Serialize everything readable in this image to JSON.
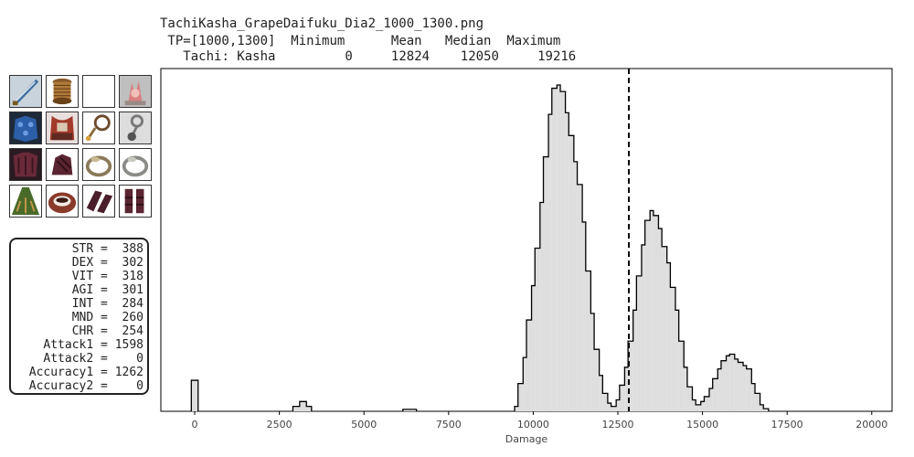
{
  "header": {
    "filename": "TachiKasha_GrapeDaifuku_Dia2_1000_1300.png",
    "tp_label": " TP=[1000,1300]",
    "col_minimum": "Minimum",
    "col_mean": "Mean",
    "col_median": "Median",
    "col_maximum": "Maximum",
    "row_label": "Tachi: Kasha",
    "minimum": "0",
    "mean": "12824",
    "median": "12050",
    "maximum": "19216"
  },
  "gear_icons": [
    "sword-icon",
    "grip-spool-icon",
    "empty-slot",
    "crystal-ammo-icon",
    "blue-helm-icon",
    "red-amulet-icon",
    "ring-earring-icon",
    "chain-earring-icon",
    "dark-body-icon",
    "dark-gloves-icon",
    "gold-ring-icon",
    "silver-ring-icon",
    "green-cape-icon",
    "belt-icon",
    "dark-legs-icon",
    "dark-boots-icon"
  ],
  "stats": [
    {
      "name": "STR",
      "value": "388"
    },
    {
      "name": "DEX",
      "value": "302"
    },
    {
      "name": "VIT",
      "value": "318"
    },
    {
      "name": "AGI",
      "value": "301"
    },
    {
      "name": "INT",
      "value": "284"
    },
    {
      "name": "MND",
      "value": "260"
    },
    {
      "name": "CHR",
      "value": "254"
    },
    {
      "name": "Attack1",
      "value": "1598"
    },
    {
      "name": "Attack2",
      "value": "0"
    },
    {
      "name": "Accuracy1",
      "value": "1262"
    },
    {
      "name": "Accuracy2",
      "value": "0"
    }
  ],
  "colors": {
    "fill": "#dedede",
    "stroke": "#000000",
    "mean_line": "#000000"
  },
  "chart_data": {
    "type": "histogram",
    "xlabel": "Damage",
    "ylabel": "",
    "xlim": [
      -1000,
      20600
    ],
    "xticks": [
      0,
      2500,
      5000,
      7500,
      10000,
      12500,
      15000,
      17500,
      20000
    ],
    "mean_line": 12824,
    "bins": [
      {
        "x0": -100,
        "x1": 100,
        "y": 0.095
      },
      {
        "x0": 2900,
        "x1": 3100,
        "y": 0.015
      },
      {
        "x0": 3100,
        "x1": 3300,
        "y": 0.03
      },
      {
        "x0": 3300,
        "x1": 3450,
        "y": 0.015
      },
      {
        "x0": 6150,
        "x1": 6350,
        "y": 0.006
      },
      {
        "x0": 6350,
        "x1": 6550,
        "y": 0.006
      },
      {
        "x0": 9450,
        "x1": 9550,
        "y": 0.015
      },
      {
        "x0": 9550,
        "x1": 9700,
        "y": 0.085
      },
      {
        "x0": 9700,
        "x1": 9800,
        "y": 0.165
      },
      {
        "x0": 9800,
        "x1": 9950,
        "y": 0.28
      },
      {
        "x0": 9950,
        "x1": 10050,
        "y": 0.385
      },
      {
        "x0": 10050,
        "x1": 10200,
        "y": 0.5
      },
      {
        "x0": 10200,
        "x1": 10300,
        "y": 0.64
      },
      {
        "x0": 10300,
        "x1": 10450,
        "y": 0.78
      },
      {
        "x0": 10450,
        "x1": 10550,
        "y": 0.91
      },
      {
        "x0": 10550,
        "x1": 10700,
        "y": 0.99
      },
      {
        "x0": 10700,
        "x1": 10800,
        "y": 1.0
      },
      {
        "x0": 10800,
        "x1": 10950,
        "y": 0.98
      },
      {
        "x0": 10950,
        "x1": 11050,
        "y": 0.915
      },
      {
        "x0": 11050,
        "x1": 11200,
        "y": 0.845
      },
      {
        "x0": 11200,
        "x1": 11300,
        "y": 0.765
      },
      {
        "x0": 11300,
        "x1": 11450,
        "y": 0.695
      },
      {
        "x0": 11450,
        "x1": 11550,
        "y": 0.58
      },
      {
        "x0": 11550,
        "x1": 11700,
        "y": 0.43
      },
      {
        "x0": 11700,
        "x1": 11800,
        "y": 0.3
      },
      {
        "x0": 11800,
        "x1": 11950,
        "y": 0.19
      },
      {
        "x0": 11950,
        "x1": 12050,
        "y": 0.11
      },
      {
        "x0": 12050,
        "x1": 12200,
        "y": 0.055
      },
      {
        "x0": 12200,
        "x1": 12300,
        "y": 0.025
      },
      {
        "x0": 12300,
        "x1": 12450,
        "y": 0.015
      },
      {
        "x0": 12450,
        "x1": 12550,
        "y": 0.035
      },
      {
        "x0": 12550,
        "x1": 12700,
        "y": 0.08
      },
      {
        "x0": 12700,
        "x1": 12800,
        "y": 0.135
      },
      {
        "x0": 12800,
        "x1": 12950,
        "y": 0.215
      },
      {
        "x0": 12950,
        "x1": 13050,
        "y": 0.31
      },
      {
        "x0": 13050,
        "x1": 13200,
        "y": 0.415
      },
      {
        "x0": 13200,
        "x1": 13300,
        "y": 0.51
      },
      {
        "x0": 13300,
        "x1": 13450,
        "y": 0.585
      },
      {
        "x0": 13450,
        "x1": 13550,
        "y": 0.615
      },
      {
        "x0": 13550,
        "x1": 13700,
        "y": 0.6
      },
      {
        "x0": 13700,
        "x1": 13800,
        "y": 0.56
      },
      {
        "x0": 13800,
        "x1": 13950,
        "y": 0.505
      },
      {
        "x0": 13950,
        "x1": 14050,
        "y": 0.455
      },
      {
        "x0": 14050,
        "x1": 14200,
        "y": 0.38
      },
      {
        "x0": 14200,
        "x1": 14300,
        "y": 0.31
      },
      {
        "x0": 14300,
        "x1": 14450,
        "y": 0.215
      },
      {
        "x0": 14450,
        "x1": 14550,
        "y": 0.135
      },
      {
        "x0": 14550,
        "x1": 14700,
        "y": 0.075
      },
      {
        "x0": 14700,
        "x1": 14800,
        "y": 0.035
      },
      {
        "x0": 14800,
        "x1": 14950,
        "y": 0.02
      },
      {
        "x0": 14950,
        "x1": 15050,
        "y": 0.03
      },
      {
        "x0": 15050,
        "x1": 15200,
        "y": 0.045
      },
      {
        "x0": 15200,
        "x1": 15300,
        "y": 0.07
      },
      {
        "x0": 15300,
        "x1": 15450,
        "y": 0.1
      },
      {
        "x0": 15450,
        "x1": 15550,
        "y": 0.13
      },
      {
        "x0": 15550,
        "x1": 15700,
        "y": 0.155
      },
      {
        "x0": 15700,
        "x1": 15800,
        "y": 0.17
      },
      {
        "x0": 15800,
        "x1": 15950,
        "y": 0.175
      },
      {
        "x0": 15950,
        "x1": 16050,
        "y": 0.16
      },
      {
        "x0": 16050,
        "x1": 16200,
        "y": 0.15
      },
      {
        "x0": 16200,
        "x1": 16300,
        "y": 0.14
      },
      {
        "x0": 16300,
        "x1": 16450,
        "y": 0.13
      },
      {
        "x0": 16450,
        "x1": 16550,
        "y": 0.085
      },
      {
        "x0": 16550,
        "x1": 16700,
        "y": 0.055
      },
      {
        "x0": 16700,
        "x1": 16800,
        "y": 0.02
      },
      {
        "x0": 16800,
        "x1": 16950,
        "y": 0.008
      }
    ]
  }
}
